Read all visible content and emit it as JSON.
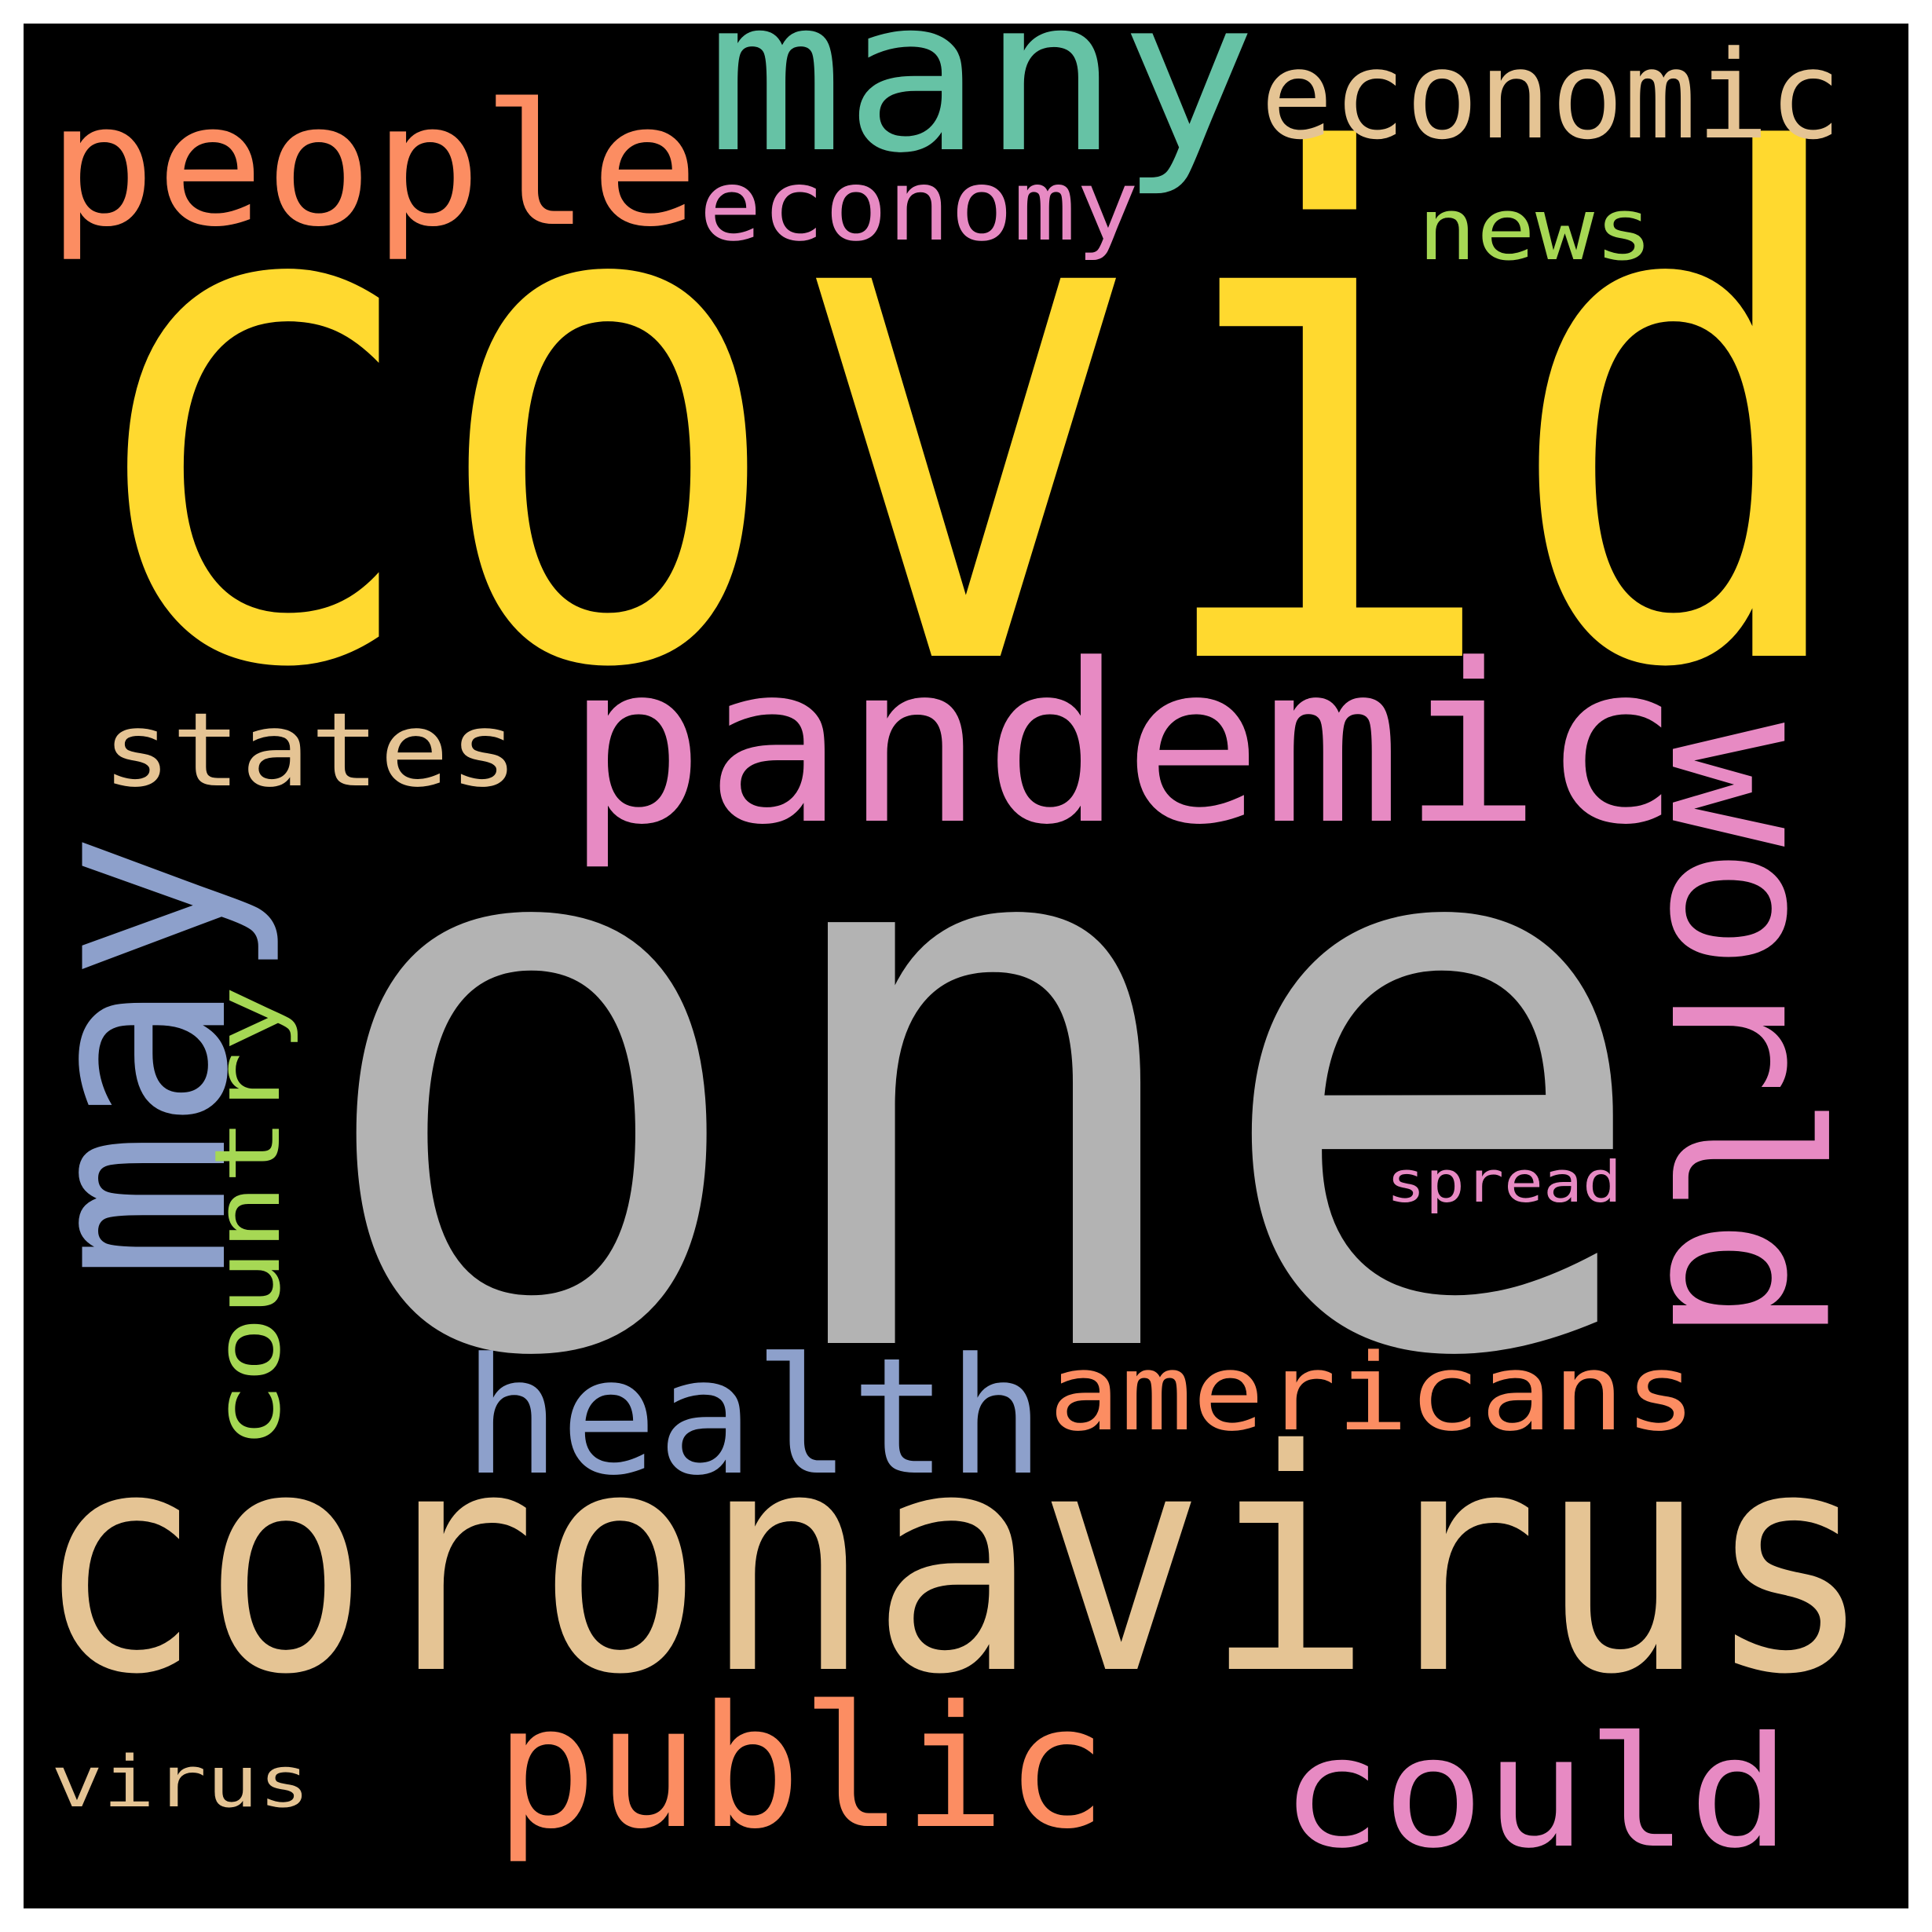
{
  "background_color": "#000000",
  "words": [
    {
      "text": "covid",
      "color": "#FFD92F"
    },
    {
      "text": "one",
      "color": "#B3B3B3"
    },
    {
      "text": "coronavirus",
      "color": "#E5C494"
    },
    {
      "text": "pandemic",
      "color": "#E78AC3"
    },
    {
      "text": "many",
      "color": "#66C2A5"
    },
    {
      "text": "people",
      "color": "#FC8D62"
    },
    {
      "text": "economic",
      "color": "#E5C494"
    },
    {
      "text": "economy",
      "color": "#E78AC3"
    },
    {
      "text": "news",
      "color": "#A6D854"
    },
    {
      "text": "states",
      "color": "#E5C494"
    },
    {
      "text": "may",
      "color": "#8DA0CB"
    },
    {
      "text": "country",
      "color": "#A6D854"
    },
    {
      "text": "world",
      "color": "#E78AC3"
    },
    {
      "text": "spread",
      "color": "#E78AC3"
    },
    {
      "text": "health",
      "color": "#8DA0CB"
    },
    {
      "text": "americans",
      "color": "#FC8D62"
    },
    {
      "text": "public",
      "color": "#FC8D62"
    },
    {
      "text": "could",
      "color": "#E78AC3"
    },
    {
      "text": "virus",
      "color": "#E5C494"
    }
  ]
}
